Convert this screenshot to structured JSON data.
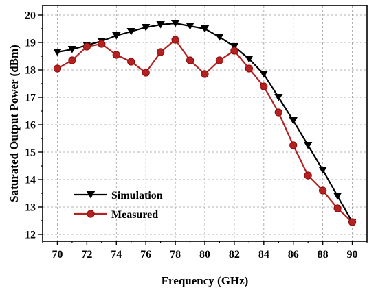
{
  "chart_data": {
    "type": "line",
    "title": "",
    "xlabel": "Frequency (GHz)",
    "ylabel": "Saturated Output Power (dBm)",
    "xlim": [
      69,
      91
    ],
    "ylim": [
      11.75,
      20.35
    ],
    "x_ticks": [
      70,
      72,
      74,
      76,
      78,
      80,
      82,
      84,
      86,
      88,
      90
    ],
    "y_ticks": [
      12,
      13,
      14,
      15,
      16,
      17,
      18,
      19,
      20
    ],
    "grid": true,
    "legend_position": "bottom-left",
    "series": [
      {
        "name": "Simulation",
        "color": "#000000",
        "marker": "triangle-down",
        "x": [
          70,
          71,
          72,
          73,
          74,
          75,
          76,
          77,
          78,
          79,
          80,
          81,
          82,
          83,
          84,
          85,
          86,
          87,
          88,
          89,
          90
        ],
        "values": [
          18.65,
          18.75,
          18.9,
          19.05,
          19.25,
          19.4,
          19.55,
          19.65,
          19.7,
          19.6,
          19.5,
          19.2,
          18.85,
          18.4,
          17.85,
          17.0,
          16.15,
          15.25,
          14.35,
          13.4,
          12.45
        ]
      },
      {
        "name": "Measured",
        "color": "#b22222",
        "marker": "circle",
        "x": [
          70,
          71,
          72,
          73,
          74,
          75,
          76,
          77,
          78,
          79,
          80,
          81,
          82,
          83,
          84,
          85,
          86,
          87,
          88,
          89,
          90
        ],
        "values": [
          18.05,
          18.35,
          18.85,
          18.95,
          18.55,
          18.3,
          17.9,
          18.65,
          19.1,
          18.35,
          17.85,
          18.35,
          18.7,
          18.05,
          17.4,
          16.45,
          15.25,
          14.15,
          13.6,
          12.95,
          12.45
        ]
      }
    ]
  }
}
